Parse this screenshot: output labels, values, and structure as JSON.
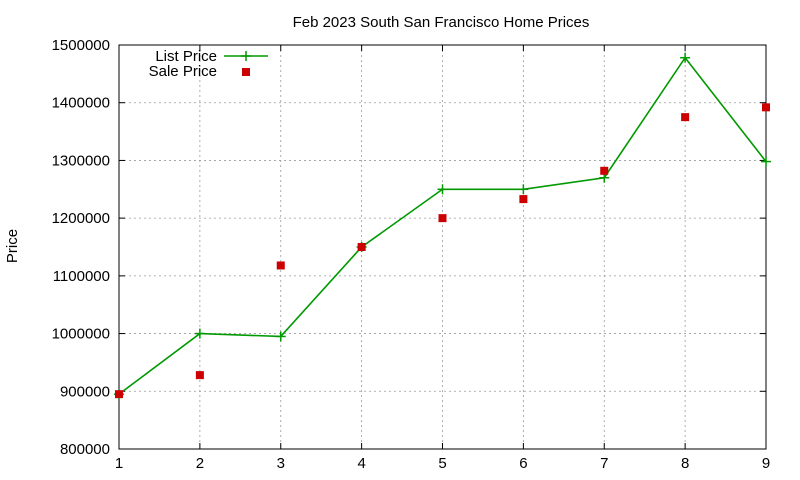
{
  "chart_data": {
    "type": "line",
    "title": "Feb 2023 South San Francisco Home Prices",
    "xlabel": "",
    "ylabel": "Price",
    "x": [
      1,
      2,
      3,
      4,
      5,
      6,
      7,
      8,
      9
    ],
    "xlim": [
      1,
      9
    ],
    "ylim": [
      800000,
      1500000
    ],
    "yticks": [
      800000,
      900000,
      1000000,
      1100000,
      1200000,
      1300000,
      1400000,
      1500000
    ],
    "xticks": [
      1,
      2,
      3,
      4,
      5,
      6,
      7,
      8,
      9
    ],
    "grid": true,
    "legend_position": "top-left",
    "series": [
      {
        "name": "List Price",
        "style": "line+cross",
        "color": "#009900",
        "values": [
          895000,
          1000000,
          995000,
          1150000,
          1250000,
          1250000,
          1270000,
          1478000,
          1298000
        ]
      },
      {
        "name": "Sale Price",
        "style": "square-points",
        "color": "#cc0000",
        "values": [
          895000,
          928000,
          1118000,
          1150000,
          1200000,
          1233000,
          1282000,
          1375000,
          1392000
        ]
      }
    ]
  }
}
